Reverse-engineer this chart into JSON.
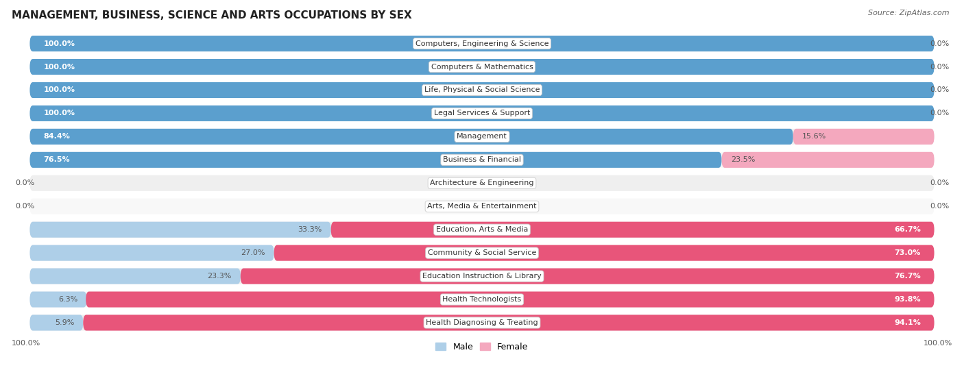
{
  "title": "MANAGEMENT, BUSINESS, SCIENCE AND ARTS OCCUPATIONS BY SEX",
  "source": "Source: ZipAtlas.com",
  "categories": [
    "Computers, Engineering & Science",
    "Computers & Mathematics",
    "Life, Physical & Social Science",
    "Legal Services & Support",
    "Management",
    "Business & Financial",
    "Architecture & Engineering",
    "Arts, Media & Entertainment",
    "Education, Arts & Media",
    "Community & Social Service",
    "Education Instruction & Library",
    "Health Technologists",
    "Health Diagnosing & Treating"
  ],
  "male_pct": [
    100.0,
    100.0,
    100.0,
    100.0,
    84.4,
    76.5,
    0.0,
    0.0,
    33.3,
    27.0,
    23.3,
    6.3,
    5.9
  ],
  "female_pct": [
    0.0,
    0.0,
    0.0,
    0.0,
    15.6,
    23.5,
    0.0,
    0.0,
    66.7,
    73.0,
    76.7,
    93.8,
    94.1
  ],
  "male_color_high": "#5b9fce",
  "male_color_low": "#aecfe8",
  "female_color_high": "#e8557a",
  "female_color_low": "#f4a8be",
  "row_bg_even": "#efefef",
  "row_bg_odd": "#f8f8f8",
  "label_fontsize": 8.0,
  "pct_fontsize": 8.0,
  "title_fontsize": 11,
  "source_fontsize": 8,
  "legend_fontsize": 9,
  "bottom_label": "100.0%"
}
